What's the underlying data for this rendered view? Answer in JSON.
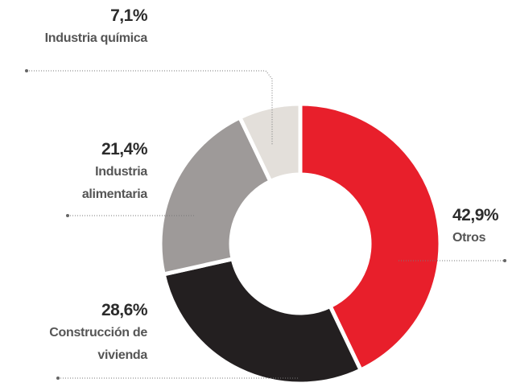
{
  "chart_data": {
    "type": "donut",
    "categories": [
      "Otros",
      "Construcción de vivienda",
      "Industria alimentaria",
      "Industria química"
    ],
    "values": [
      42.9,
      28.6,
      21.4,
      7.1
    ],
    "value_labels": [
      "42,9%",
      "28,6%",
      "21,4%",
      "7,1%"
    ],
    "colors": [
      "#e81f2b",
      "#231f20",
      "#9e9a99",
      "#e3dfda"
    ]
  }
}
